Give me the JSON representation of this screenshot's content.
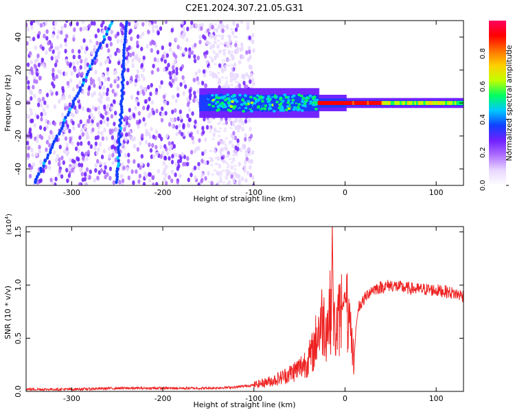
{
  "figure": {
    "title": "C2E1.2024.307.21.05.G31"
  },
  "colors": {
    "snr_line": "#ee2222",
    "axis": "#000000",
    "colormap": [
      "#ffffff",
      "#e8d8ff",
      "#b070ff",
      "#7020ff",
      "#1040ff",
      "#00c8ff",
      "#00ff60",
      "#c0ff00",
      "#ffd000",
      "#ff7000",
      "#ff0000",
      "#ff0060"
    ]
  },
  "chart_data": [
    {
      "type": "heatmap",
      "xlabel": "Height of straight line (km)",
      "ylabel": "Frequency (Hz)",
      "xlim": [
        -350,
        130
      ],
      "ylim": [
        -50,
        50
      ],
      "xticks": [
        "-300",
        "-200",
        "-100",
        "0",
        "100"
      ],
      "xtick_values": [
        -300,
        -200,
        -100,
        0,
        100
      ],
      "yticks": [
        "-40",
        "-20",
        "0",
        "20",
        "40"
      ],
      "ytick_values": [
        -40,
        -20,
        0,
        20,
        40
      ],
      "colorbar": {
        "label": "Normalized spectral amplitude",
        "range": [
          0,
          1
        ],
        "ticks": [
          "0.0",
          "0.2",
          "0.4",
          "0.6",
          "0.8"
        ],
        "tick_values": [
          0.0,
          0.2,
          0.4,
          0.6,
          0.8
        ]
      },
      "features": {
        "diffuse_noise_extent_x": [
          -350,
          -120
        ],
        "signal_band_center_hz": 0,
        "signal_band_start_x": -160,
        "tracks": [
          {
            "from": [
              -340,
              -48
            ],
            "to": [
              -255,
              50
            ]
          },
          {
            "from": [
              -250,
              -48
            ],
            "to": [
              -240,
              50
            ]
          }
        ]
      }
    },
    {
      "type": "line",
      "xlabel": "Height of straight line (km)",
      "ylabel": "SNR (10 * v/v)",
      "multiplier": "(x10",
      "multiplier_exp": "4",
      "multiplier_close": ")",
      "xlim": [
        -350,
        130
      ],
      "ylim": [
        0,
        1.55
      ],
      "xticks": [
        "-300",
        "-200",
        "-100",
        "0",
        "100"
      ],
      "xtick_values": [
        -300,
        -200,
        -100,
        0,
        100
      ],
      "yticks": [
        "0.0",
        "0.5",
        "1.0",
        "1.5"
      ],
      "ytick_values": [
        0.0,
        0.5,
        1.0,
        1.5
      ],
      "series": [
        {
          "x": [
            -350,
            -300,
            -250,
            -200,
            -150,
            -120,
            -100,
            -90,
            -80,
            -70,
            -60,
            -50,
            -40,
            -35,
            -30,
            -25,
            -20,
            -15,
            -14,
            -13,
            -12,
            -10,
            -5,
            0,
            5,
            10,
            12,
            15,
            20,
            25,
            30,
            40,
            50,
            60,
            70,
            80,
            90,
            100,
            110,
            120,
            130
          ],
          "y": [
            0.02,
            0.02,
            0.03,
            0.03,
            0.03,
            0.04,
            0.06,
            0.08,
            0.1,
            0.13,
            0.17,
            0.22,
            0.3,
            0.38,
            0.55,
            0.68,
            0.6,
            0.8,
            1.55,
            0.9,
            0.6,
            0.55,
            0.75,
            0.9,
            0.55,
            0.3,
            0.6,
            0.8,
            0.85,
            0.92,
            0.96,
            0.98,
            1.0,
            0.98,
            0.97,
            0.96,
            0.96,
            0.95,
            0.94,
            0.92,
            0.9
          ]
        }
      ]
    }
  ]
}
